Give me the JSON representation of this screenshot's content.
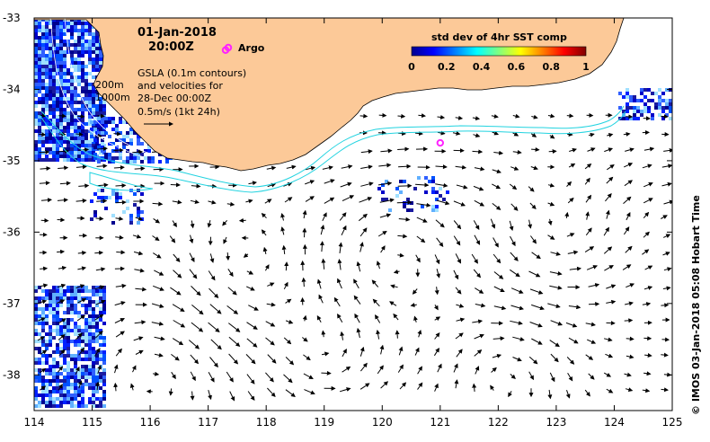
{
  "map": {
    "lon_range": [
      114,
      125
    ],
    "lat_range": [
      -38.5,
      -33
    ],
    "x_ticks": [
      "114",
      "115",
      "116",
      "117",
      "118",
      "119",
      "120",
      "121",
      "122",
      "123",
      "124",
      "125"
    ],
    "y_ticks": [
      "-33",
      "-34",
      "-35",
      "-36",
      "-37",
      "-38"
    ],
    "land_color": "#fcc998",
    "contour_color": "#22d3e0",
    "argo_color": "#ff22ff"
  },
  "header": {
    "date": "01-Jan-2018",
    "time": "20:00Z"
  },
  "argo": {
    "label": "Argo",
    "floats": [
      {
        "lon": 117.3,
        "lat": -33.45
      },
      {
        "lon": 121.0,
        "lat": -34.75
      }
    ]
  },
  "info": {
    "line1": "GSLA (0.1m contours)",
    "line2": "and velocities for",
    "line3": "28-Dec 00:00Z",
    "line4": "0.5m/s (1kt 24h)"
  },
  "isobaths": {
    "shallow": "200m",
    "deep": "1000m"
  },
  "colorbar": {
    "title": "std dev of 4hr SST comp",
    "ticks": [
      "0",
      "0.2",
      "0.4",
      "0.6",
      "0.8",
      "1"
    ],
    "colors": [
      "#00008f",
      "#0000ff",
      "#0080ff",
      "#00ffff",
      "#80ff80",
      "#ffff00",
      "#ff8000",
      "#ff0000",
      "#800000"
    ]
  },
  "credit": "©  IMOS 03-Jan-2018 05:08 Hobart Time"
}
